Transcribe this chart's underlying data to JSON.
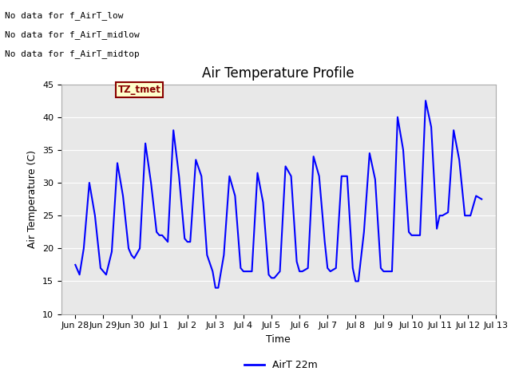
{
  "title": "Air Temperature Profile",
  "xlabel": "Time",
  "ylabel": "Air Temperature (C)",
  "ylim": [
    10,
    45
  ],
  "yticks": [
    10,
    15,
    20,
    25,
    30,
    35,
    40,
    45
  ],
  "line_color": "blue",
  "line_width": 1.5,
  "legend_label": "AirT 22m",
  "annotations": [
    "No data for f_AirT_low",
    "No data for f_AirT_midlow",
    "No data for f_AirT_midtop"
  ],
  "annotation_color": "black",
  "annotation_fontsize": 8,
  "legend_box_color": "#ffffcc",
  "legend_box_edge_color": "#880000",
  "legend_text": "TZ_tmet",
  "legend_text_color": "#880000",
  "background_color": "#e8e8e8",
  "x_values": [
    0,
    0.15,
    0.3,
    0.5,
    0.7,
    0.9,
    1.0,
    1.1,
    1.3,
    1.5,
    1.7,
    1.9,
    2.0,
    2.1,
    2.3,
    2.5,
    2.7,
    2.9,
    3.0,
    3.1,
    3.3,
    3.5,
    3.7,
    3.9,
    4.0,
    4.1,
    4.3,
    4.5,
    4.7,
    4.9,
    5.0,
    5.1,
    5.3,
    5.5,
    5.7,
    5.9,
    6.0,
    6.1,
    6.3,
    6.5,
    6.7,
    6.9,
    7.0,
    7.1,
    7.3,
    7.5,
    7.7,
    7.9,
    8.0,
    8.1,
    8.3,
    8.5,
    8.7,
    8.9,
    9.0,
    9.1,
    9.3,
    9.5,
    9.7,
    9.9,
    10.0,
    10.1,
    10.3,
    10.5,
    10.7,
    10.9,
    11.0,
    11.1,
    11.3,
    11.5,
    11.7,
    11.9,
    12.0,
    12.1,
    12.3,
    12.5,
    12.7,
    12.9,
    13.0,
    13.1,
    13.3,
    13.5,
    13.7,
    13.9,
    14.0,
    14.1,
    14.3,
    14.5
  ],
  "y_values": [
    17.5,
    16.0,
    20.0,
    30.0,
    25.0,
    17.0,
    16.5,
    16.0,
    19.5,
    33.0,
    28.0,
    20.0,
    19.0,
    18.5,
    20.0,
    36.0,
    30.0,
    22.5,
    22.0,
    22.0,
    21.0,
    38.0,
    31.0,
    21.5,
    21.0,
    21.0,
    33.5,
    31.0,
    19.0,
    16.5,
    14.0,
    14.0,
    19.0,
    31.0,
    28.0,
    17.0,
    16.5,
    16.5,
    16.5,
    31.5,
    27.0,
    16.0,
    15.5,
    15.5,
    16.5,
    32.5,
    31.0,
    18.0,
    16.5,
    16.5,
    17.0,
    34.0,
    31.0,
    21.0,
    17.0,
    16.5,
    17.0,
    31.0,
    31.0,
    17.0,
    15.0,
    15.0,
    22.5,
    34.5,
    30.5,
    17.0,
    16.5,
    16.5,
    16.5,
    40.0,
    35.0,
    22.5,
    22.0,
    22.0,
    22.0,
    42.5,
    38.5,
    23.0,
    25.0,
    25.0,
    25.5,
    38.0,
    33.5,
    25.0,
    25.0,
    25.0,
    28.0,
    27.5
  ],
  "x_tick_labels": [
    "Jun 28",
    "Jun 29",
    "Jun 30",
    "Jul 1",
    "Jul 2",
    "Jul 3",
    "Jul 4",
    "Jul 5",
    "Jul 6",
    "Jul 7",
    "Jul 8",
    "Jul 9",
    "Jul 10",
    "Jul 11",
    "Jul 12",
    "Jul 13"
  ]
}
